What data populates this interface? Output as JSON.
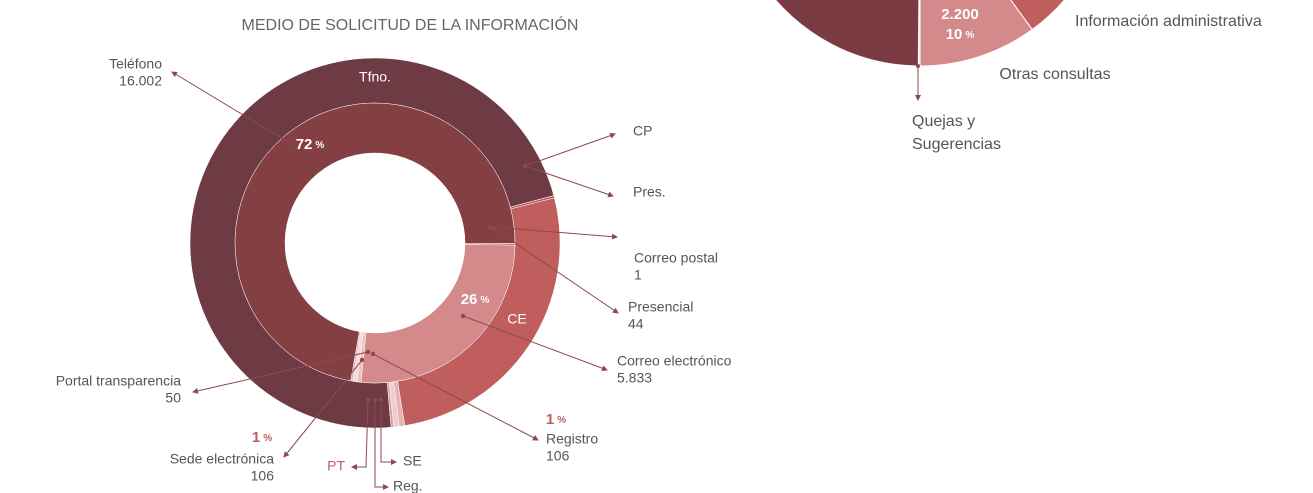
{
  "chart_data": [
    {
      "type": "donut",
      "title": "MEDIO DE SOLICITUD DE LA INFORMACIÓN",
      "categories": [
        "Teléfono",
        "Correo postal",
        "Presencial",
        "Correo electrónico",
        "Registro",
        "Sede electrónica",
        "Portal transparencia"
      ],
      "short_labels": [
        "Tfno.",
        "CP",
        "Pres.",
        "CE",
        "Reg.",
        "SE",
        "PT"
      ],
      "values": [
        16002,
        1,
        44,
        5833,
        106,
        106,
        50
      ],
      "value_labels": [
        "16.002",
        "1",
        "44",
        "5.833",
        "106",
        "106",
        "50"
      ],
      "percentages": [
        72,
        null,
        null,
        26,
        1,
        1,
        null
      ],
      "percent_unit": "%",
      "colors": [
        "#6e3a43",
        "#a84a4e",
        "#b5525a",
        "#c05d5d",
        "#e5b4b4",
        "#f0cccc",
        "#d9a0a0"
      ],
      "inner_colors": [
        "#843f43",
        "#b04c50",
        "#bd5a5e",
        "#d4898b",
        "#ecc0c0",
        "#f5d9d9",
        "#e2abab"
      ]
    },
    {
      "type": "pie",
      "categories": [
        "Información administrativa",
        "Otras consultas",
        "Quejas y Sugerencias",
        null
      ],
      "values": [
        5770,
        2200,
        30,
        14000
      ],
      "value_labels": [
        null,
        "2.200",
        null,
        null
      ],
      "percentages": [
        null,
        10,
        null,
        null
      ],
      "percent_unit": "%",
      "colors": [
        "#c05d5d",
        "#d4898b",
        "#f3d6d6",
        "#7b3b42"
      ]
    }
  ]
}
